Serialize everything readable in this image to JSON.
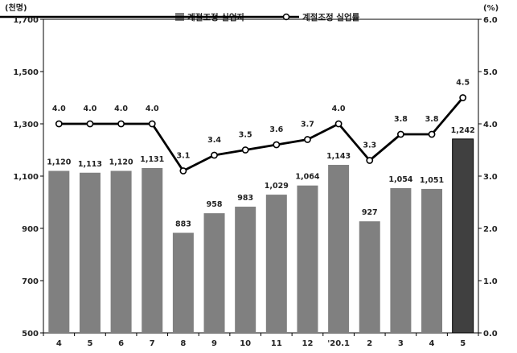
{
  "chart_data": {
    "type": "bar+line",
    "categories": [
      "4",
      "5",
      "6",
      "7",
      "8",
      "9",
      "10",
      "11",
      "12",
      "'20.1",
      "2",
      "3",
      "4",
      "5"
    ],
    "left_unit": "(천명)",
    "right_unit": "(%)",
    "left_ticks": [
      "500",
      "700",
      "900",
      "1,100",
      "1,300",
      "1,500",
      "1,700"
    ],
    "right_ticks": [
      "0.0",
      "1.0",
      "2.0",
      "3.0",
      "4.0",
      "5.0",
      "6.0"
    ],
    "ylim_left": [
      500,
      1700
    ],
    "ylim_right": [
      0,
      6
    ],
    "legend": {
      "bar": "계절조정 실업자",
      "line": "계절조정 실업률",
      "placement": "top-center"
    },
    "bar_series": {
      "name": "계절조정 실업자",
      "values": [
        1120,
        1113,
        1120,
        1131,
        883,
        958,
        983,
        1029,
        1064,
        1143,
        927,
        1054,
        1051,
        1242
      ],
      "labels": [
        "1,120",
        "1,113",
        "1,120",
        "1,131",
        "883",
        "958",
        "983",
        "1,029",
        "1,064",
        "1,143",
        "927",
        "1,054",
        "1,051",
        "1,242"
      ],
      "color": "#808080",
      "highlight_color": "#404040",
      "highlight_index": 13
    },
    "line_series": {
      "name": "계절조정 실업률",
      "values": [
        4.0,
        4.0,
        4.0,
        4.0,
        3.1,
        3.4,
        3.5,
        3.6,
        3.7,
        4.0,
        3.3,
        3.8,
        3.8,
        4.5
      ],
      "labels": [
        "4.0",
        "4.0",
        "4.0",
        "4.0",
        "3.1",
        "3.4",
        "3.5",
        "3.6",
        "3.7",
        "4.0",
        "3.3",
        "3.8",
        "3.8",
        "4.5"
      ],
      "color": "#000000"
    }
  }
}
